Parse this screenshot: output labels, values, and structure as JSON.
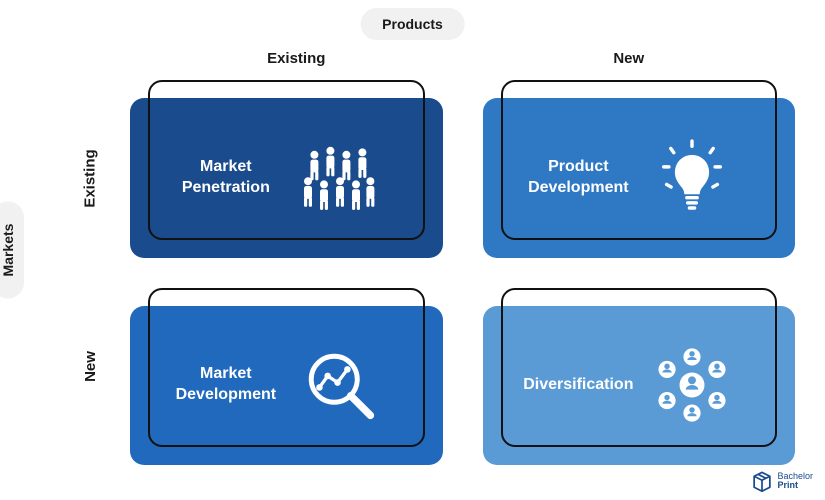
{
  "type": "matrix-2x2",
  "background_color": "#ffffff",
  "outline_color": "#111111",
  "outline_width": 2.5,
  "border_radius": 14,
  "axes": {
    "top": {
      "label": "Products",
      "pill_bg": "#f1f1f1",
      "font_weight": 700
    },
    "left": {
      "label": "Markets",
      "pill_bg": "#f1f1f1",
      "font_weight": 700
    }
  },
  "columns": [
    {
      "label": "Existing"
    },
    {
      "label": "New"
    }
  ],
  "rows": [
    {
      "label": "Existing"
    },
    {
      "label": "New"
    }
  ],
  "cells": [
    {
      "row": 0,
      "col": 0,
      "label": "Market\nPenetration",
      "fill": "#1a4b8c",
      "text_color": "#ffffff",
      "icon": "people-group-icon"
    },
    {
      "row": 0,
      "col": 1,
      "label": "Product\nDevelopment",
      "fill": "#2f78c4",
      "text_color": "#ffffff",
      "icon": "lightbulb-icon"
    },
    {
      "row": 1,
      "col": 0,
      "label": "Market\nDevelopment",
      "fill": "#2169bd",
      "text_color": "#ffffff",
      "icon": "magnify-chart-icon"
    },
    {
      "row": 1,
      "col": 1,
      "label": "Diversification",
      "fill": "#5a9bd5",
      "text_color": "#ffffff",
      "icon": "user-network-icon"
    }
  ],
  "label_fontsize": 16,
  "header_fontsize": 15,
  "logo": {
    "line1": "Bachelor",
    "line2": "Print",
    "color": "#1a4b8c"
  }
}
